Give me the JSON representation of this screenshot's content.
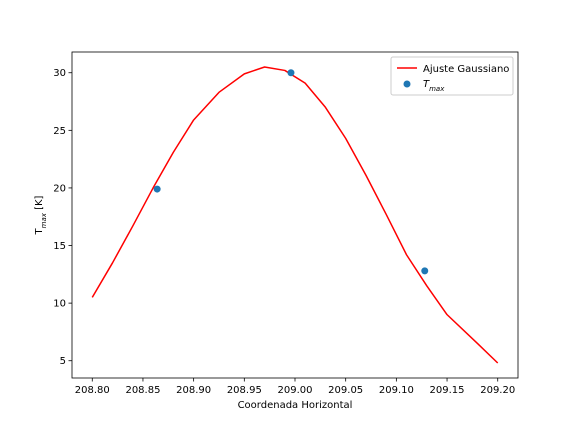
{
  "chart_data": {
    "type": "line",
    "xlabel": "Coordenada Horizontal",
    "ylabel_main": "T",
    "ylabel_sub": "max",
    "ylabel_unit": " [K]",
    "xlim": [
      208.78,
      209.22
    ],
    "ylim": [
      3.5,
      31.8
    ],
    "xticks": [
      208.8,
      208.85,
      208.9,
      208.95,
      209.0,
      209.05,
      209.1,
      209.15,
      209.2
    ],
    "xtick_labels": [
      "208.80",
      "208.85",
      "208.90",
      "208.95",
      "209.00",
      "209.05",
      "209.10",
      "209.15",
      "209.20"
    ],
    "yticks": [
      5,
      10,
      15,
      20,
      25,
      30
    ],
    "ytick_labels": [
      "5",
      "10",
      "15",
      "20",
      "25",
      "30"
    ],
    "legend_position": "top-right",
    "series": [
      {
        "name": "Ajuste Gaussiano",
        "kind": "line",
        "color": "#ff0000",
        "x": [
          208.8,
          208.82,
          208.84,
          208.86,
          208.88,
          208.9,
          208.925,
          208.95,
          208.97,
          208.99,
          209.01,
          209.03,
          209.05,
          209.07,
          209.09,
          209.11,
          209.13,
          209.15,
          209.18,
          209.2
        ],
        "y": [
          10.5,
          13.5,
          16.7,
          20.0,
          23.1,
          25.9,
          28.3,
          29.9,
          30.5,
          30.2,
          29.1,
          27.0,
          24.3,
          21.1,
          17.7,
          14.2,
          11.5,
          9.0,
          6.5,
          4.8
        ]
      },
      {
        "name": "T",
        "name_sub": "max",
        "kind": "scatter",
        "color": "#1f77b4",
        "x": [
          208.864,
          208.996,
          209.128
        ],
        "y": [
          19.9,
          30.0,
          12.8
        ]
      }
    ]
  }
}
